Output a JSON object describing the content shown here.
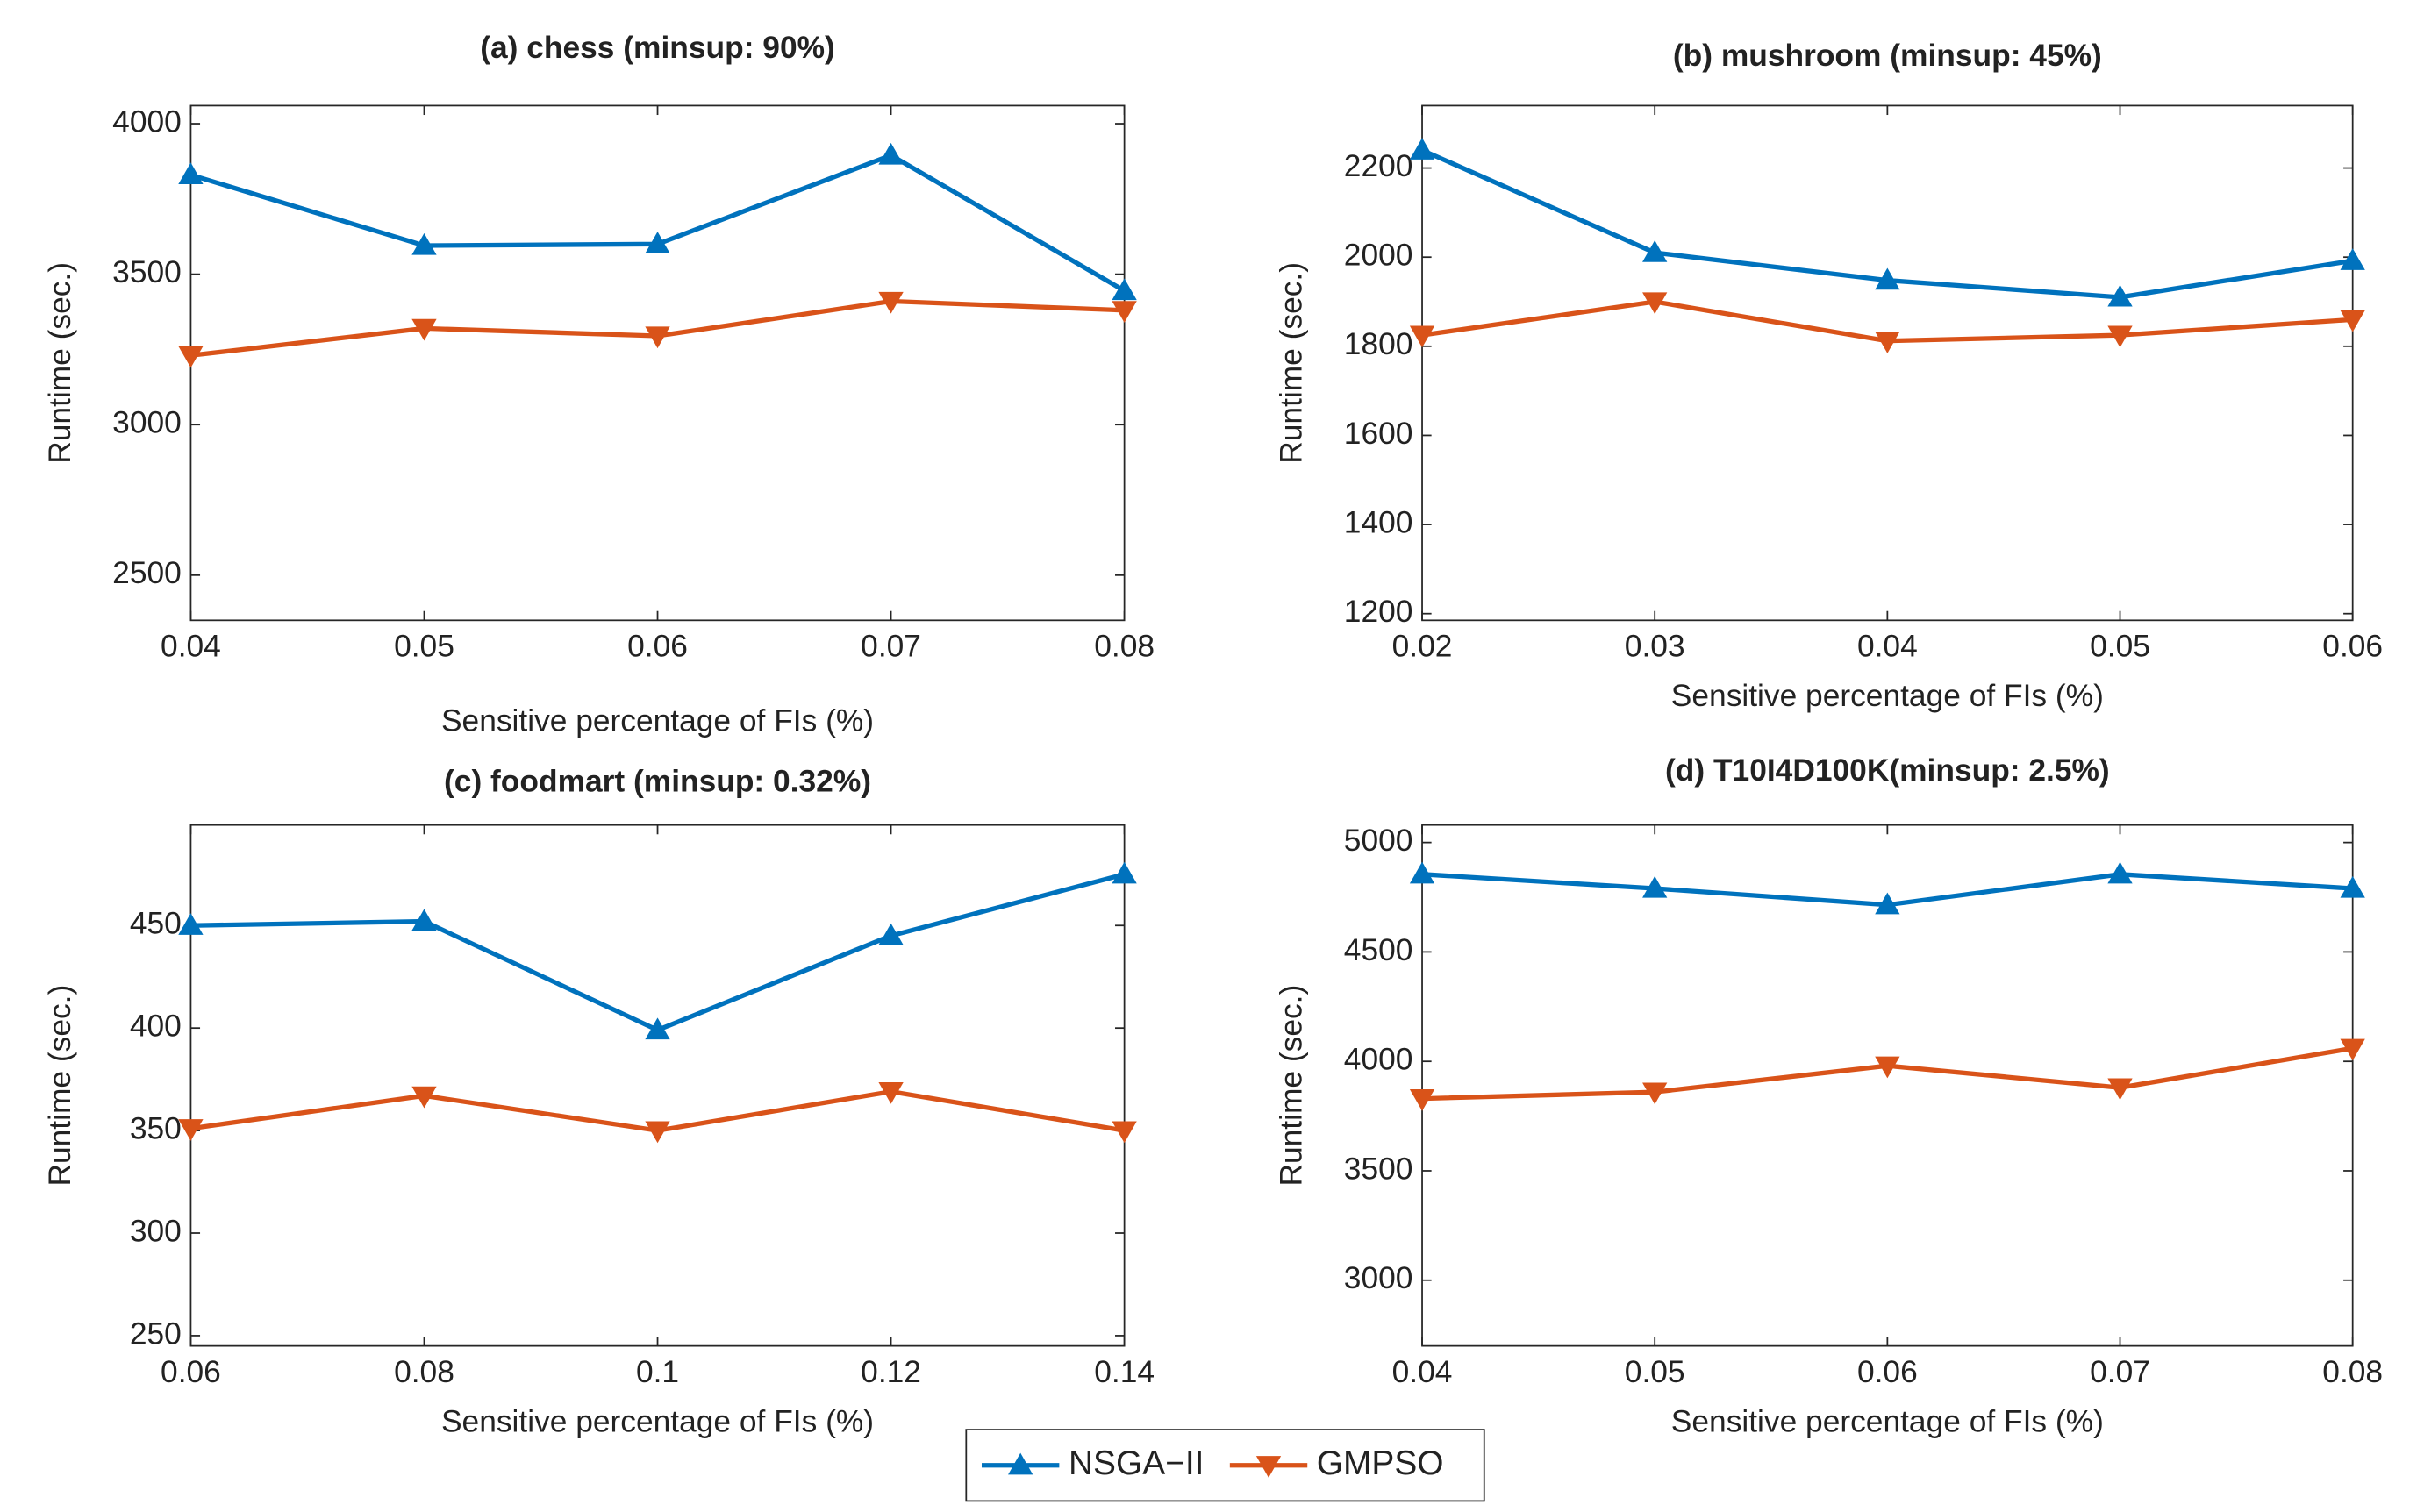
{
  "chart_data": [
    {
      "type": "line",
      "title": "(a) chess (minsup: 90%)",
      "xlabel": "Sensitive percentage of FIs (%)",
      "ylabel": "Runtime (sec.)",
      "x": [
        0.04,
        0.05,
        0.06,
        0.07,
        0.08
      ],
      "xlim": [
        0.04,
        0.08
      ],
      "xticks": [
        0.04,
        0.05,
        0.06,
        0.07,
        0.08
      ],
      "ylim": [
        2350,
        4060
      ],
      "yticks": [
        2500,
        3000,
        3500,
        4000
      ],
      "series": [
        {
          "name": "NSGA−II",
          "color": "#0072BD",
          "marker": "triangle-up",
          "values": [
            3830,
            3595,
            3600,
            3895,
            3445
          ]
        },
        {
          "name": "GMPSO",
          "color": "#D95319",
          "marker": "triangle-down",
          "values": [
            3230,
            3320,
            3295,
            3410,
            3380
          ]
        }
      ]
    },
    {
      "type": "line",
      "title": "(b) mushroom (minsup: 45%)",
      "xlabel": "Sensitive percentage of FIs (%)",
      "ylabel": "Runtime (sec.)",
      "x": [
        0.02,
        0.03,
        0.04,
        0.05,
        0.06
      ],
      "xlim": [
        0.02,
        0.06
      ],
      "xticks": [
        0.02,
        0.03,
        0.04,
        0.05,
        0.06
      ],
      "ylim": [
        1185,
        2340
      ],
      "yticks": [
        1200,
        1400,
        1600,
        1800,
        2000,
        2200
      ],
      "series": [
        {
          "name": "NSGA−II",
          "color": "#0072BD",
          "marker": "triangle-up",
          "values": [
            2240,
            2010,
            1948,
            1910,
            1992
          ]
        },
        {
          "name": "GMPSO",
          "color": "#D95319",
          "marker": "triangle-down",
          "values": [
            1825,
            1900,
            1812,
            1825,
            1860
          ]
        }
      ]
    },
    {
      "type": "line",
      "title": "(c) foodmart (minsup: 0.32%)",
      "xlabel": "Sensitive percentage of FIs (%)",
      "ylabel": "Runtime (sec.)",
      "x": [
        0.06,
        0.08,
        0.1,
        0.12,
        0.14
      ],
      "xlim": [
        0.06,
        0.14
      ],
      "xticks": [
        0.06,
        0.08,
        0.1,
        0.12,
        0.14
      ],
      "ylim": [
        245,
        499
      ],
      "yticks": [
        250,
        300,
        350,
        400,
        450
      ],
      "series": [
        {
          "name": "NSGA−II",
          "color": "#0072BD",
          "marker": "triangle-up",
          "values": [
            450,
            452,
            399,
            445,
            475
          ]
        },
        {
          "name": "GMPSO",
          "color": "#D95319",
          "marker": "triangle-down",
          "values": [
            351,
            367,
            350,
            369,
            350
          ]
        }
      ]
    },
    {
      "type": "line",
      "title": "(d) T10I4D100K(minsup: 2.5%)",
      "xlabel": "Sensitive percentage of FIs (%)",
      "ylabel": "Runtime (sec.)",
      "x": [
        0.04,
        0.05,
        0.06,
        0.07,
        0.08
      ],
      "xlim": [
        0.04,
        0.08
      ],
      "xticks": [
        0.04,
        0.05,
        0.06,
        0.07,
        0.08
      ],
      "ylim": [
        2700,
        5080
      ],
      "yticks": [
        3000,
        3500,
        4000,
        4500,
        5000
      ],
      "series": [
        {
          "name": "NSGA−II",
          "color": "#0072BD",
          "marker": "triangle-up",
          "values": [
            4855,
            4790,
            4715,
            4855,
            4790
          ]
        },
        {
          "name": "GMPSO",
          "color": "#D95319",
          "marker": "triangle-down",
          "values": [
            3830,
            3860,
            3980,
            3880,
            4060
          ]
        }
      ]
    }
  ]
}
